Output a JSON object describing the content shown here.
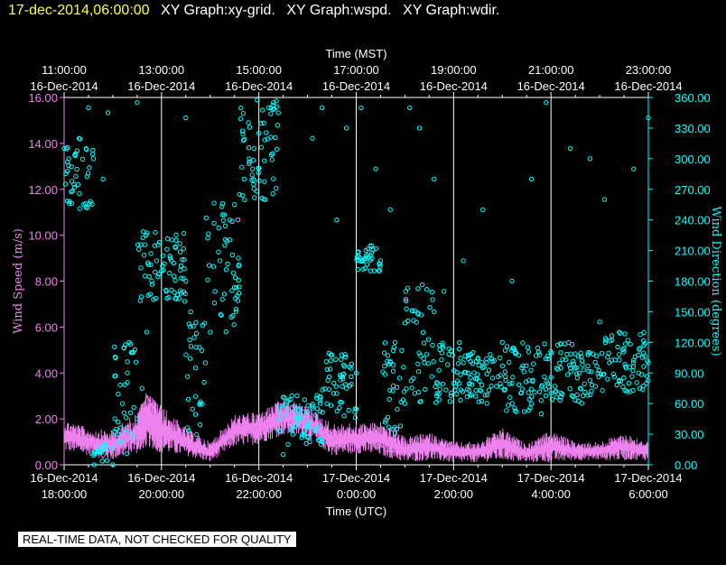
{
  "header": {
    "timestamp": "17-dec-2014,06:00:00",
    "graphs": [
      "XY Graph:xy-grid.",
      "XY Graph:wspd.",
      "XY Graph:wdir."
    ]
  },
  "notice": "REAL-TIME DATA, NOT CHECKED FOR QUALITY",
  "colors": {
    "background": "#000000",
    "grid": "#ffffff",
    "wind_speed": "#ee82ee",
    "wind_direction": "#00ffff",
    "timestamp_text": "#ffff33"
  },
  "chart_data": {
    "type": "scatter",
    "top_axis": {
      "title": "Time (MST)",
      "ticks": [
        {
          "t": 0,
          "time": "11:00:00",
          "date": "16-Dec-2014"
        },
        {
          "t": 2,
          "time": "13:00:00",
          "date": "16-Dec-2014"
        },
        {
          "t": 4,
          "time": "15:00:00",
          "date": "16-Dec-2014"
        },
        {
          "t": 6,
          "time": "17:00:00",
          "date": "16-Dec-2014"
        },
        {
          "t": 8,
          "time": "19:00:00",
          "date": "16-Dec-2014"
        },
        {
          "t": 10,
          "time": "21:00:00",
          "date": "16-Dec-2014"
        },
        {
          "t": 12,
          "time": "23:00:00",
          "date": "16-Dec-2014"
        }
      ]
    },
    "bottom_axis": {
      "title": "Time (UTC)",
      "ticks": [
        {
          "t": 0,
          "date": "16-Dec-2014",
          "time": "18:00:00"
        },
        {
          "t": 2,
          "date": "16-Dec-2014",
          "time": "20:00:00"
        },
        {
          "t": 4,
          "date": "16-Dec-2014",
          "time": "22:00:00"
        },
        {
          "t": 6,
          "date": "17-Dec-2014",
          "time": "0:00:00"
        },
        {
          "t": 8,
          "date": "17-Dec-2014",
          "time": "2:00:00"
        },
        {
          "t": 10,
          "date": "17-Dec-2014",
          "time": "4:00:00"
        },
        {
          "t": 12,
          "date": "17-Dec-2014",
          "time": "6:00:00"
        }
      ]
    },
    "xlim": [
      0,
      12
    ],
    "left_axis": {
      "title": "Wind Speed (m/s)",
      "ylim": [
        0,
        16
      ],
      "ticks": [
        "0.00",
        "2.00",
        "4.00",
        "6.00",
        "8.00",
        "10.00",
        "12.00",
        "14.00",
        "16.00"
      ]
    },
    "right_axis": {
      "title": "Wind Direction (degrees)",
      "ylim": [
        0,
        360
      ],
      "ticks": [
        "0.00",
        "30.00",
        "60.00",
        "90.00",
        "120.00",
        "150.00",
        "180.00",
        "210.00",
        "240.00",
        "270.00",
        "300.00",
        "330.00",
        "360.00"
      ]
    },
    "grid": true,
    "series": [
      {
        "key": "wspd",
        "axis": "left",
        "style": "line",
        "color": "#ee82ee",
        "points": [
          [
            0,
            1.5
          ],
          [
            0.5,
            1.0
          ],
          [
            0.8,
            0.3
          ],
          [
            1.2,
            1.4
          ],
          [
            1.5,
            1.6
          ],
          [
            1.7,
            3.0
          ],
          [
            2.0,
            1.8
          ],
          [
            2.3,
            1.0
          ],
          [
            2.6,
            0.7
          ],
          [
            3.0,
            0.4
          ],
          [
            3.3,
            1.0
          ],
          [
            3.6,
            1.8
          ],
          [
            4.0,
            1.7
          ],
          [
            4.3,
            2.1
          ],
          [
            4.7,
            2.6
          ],
          [
            5.0,
            2.3
          ],
          [
            5.3,
            1.2
          ],
          [
            5.6,
            0.9
          ],
          [
            6.0,
            1.0
          ],
          [
            6.3,
            1.5
          ],
          [
            6.6,
            0.6
          ],
          [
            7.0,
            0.5
          ],
          [
            7.4,
            1.0
          ],
          [
            7.8,
            0.4
          ],
          [
            8.2,
            0.6
          ],
          [
            8.6,
            0.5
          ],
          [
            9.0,
            1.0
          ],
          [
            9.4,
            0.3
          ],
          [
            9.8,
            1.1
          ],
          [
            10.2,
            0.6
          ],
          [
            10.6,
            0.5
          ],
          [
            11.0,
            0.5
          ],
          [
            11.4,
            1.0
          ],
          [
            11.8,
            0.5
          ],
          [
            12.0,
            0.5
          ]
        ],
        "range_points": [
          [
            0,
            0.6,
            2.0
          ],
          [
            0.5,
            0.4,
            1.6
          ],
          [
            1.0,
            0.2,
            1.5
          ],
          [
            1.5,
            0.5,
            2.3
          ],
          [
            1.7,
            0.8,
            3.2
          ],
          [
            2.0,
            0.5,
            2.6
          ],
          [
            2.5,
            0.4,
            1.6
          ],
          [
            3.0,
            0.1,
            1.0
          ],
          [
            3.5,
            0.8,
            2.2
          ],
          [
            4.0,
            0.9,
            2.3
          ],
          [
            4.5,
            1.3,
            2.9
          ],
          [
            5.0,
            1.2,
            2.6
          ],
          [
            5.5,
            0.4,
            1.8
          ],
          [
            6.0,
            0.5,
            1.8
          ],
          [
            6.5,
            0.4,
            1.9
          ],
          [
            7.0,
            0.1,
            1.2
          ],
          [
            7.5,
            0.2,
            1.4
          ],
          [
            8.0,
            0.1,
            1.0
          ],
          [
            8.5,
            0.1,
            1.0
          ],
          [
            9.0,
            0.2,
            1.6
          ],
          [
            9.5,
            0.1,
            0.9
          ],
          [
            10.0,
            0.1,
            1.5
          ],
          [
            10.5,
            0.2,
            1.0
          ],
          [
            11.0,
            0.2,
            1.0
          ],
          [
            11.5,
            0.2,
            1.4
          ],
          [
            12.0,
            0.2,
            1.0
          ]
        ]
      },
      {
        "key": "wdir",
        "axis": "right",
        "style": "circles",
        "color": "#00ffff",
        "points": [
          [
            0,
            310
          ],
          [
            0.2,
            275
          ],
          [
            0.4,
            255
          ],
          [
            0.6,
            300
          ],
          [
            0.8,
            280
          ],
          [
            1.0,
            0
          ],
          [
            1.1,
            30
          ],
          [
            1.2,
            60
          ],
          [
            1.3,
            90
          ],
          [
            1.4,
            110
          ],
          [
            1.5,
            45
          ],
          [
            1.6,
            75
          ],
          [
            1.7,
            130
          ],
          [
            1.8,
            180
          ],
          [
            1.9,
            200
          ],
          [
            2.0,
            190
          ],
          [
            2.1,
            170
          ],
          [
            2.2,
            200
          ],
          [
            2.3,
            220
          ],
          [
            2.4,
            195
          ],
          [
            2.5,
            180
          ],
          [
            2.6,
            150
          ],
          [
            2.7,
            95
          ],
          [
            2.8,
            60
          ],
          [
            2.9,
            100
          ],
          [
            3.0,
            130
          ],
          [
            3.1,
            170
          ],
          [
            3.2,
            200
          ],
          [
            3.3,
            215
          ],
          [
            3.4,
            240
          ],
          [
            3.5,
            255
          ],
          [
            3.6,
            265
          ],
          [
            3.7,
            280
          ],
          [
            3.8,
            295
          ],
          [
            3.9,
            310
          ],
          [
            4.0,
            325
          ],
          [
            4.1,
            335
          ],
          [
            4.2,
            350
          ],
          [
            4.3,
            355
          ],
          [
            4.4,
            345
          ],
          [
            4.5,
            10
          ],
          [
            4.6,
            20
          ],
          [
            4.7,
            30
          ],
          [
            4.8,
            40
          ],
          [
            4.9,
            48
          ],
          [
            5.0,
            52
          ],
          [
            5.2,
            55
          ],
          [
            5.4,
            60
          ],
          [
            5.6,
            70
          ],
          [
            5.8,
            75
          ],
          [
            6.0,
            90
          ],
          [
            6.2,
            210
          ],
          [
            6.3,
            205
          ],
          [
            6.5,
            200
          ],
          [
            6.8,
            120
          ],
          [
            7.0,
            60
          ],
          [
            7.2,
            70
          ],
          [
            7.4,
            100
          ],
          [
            7.6,
            150
          ],
          [
            7.8,
            170
          ],
          [
            8.0,
            80
          ],
          [
            8.2,
            100
          ],
          [
            8.4,
            110
          ],
          [
            8.6,
            95
          ],
          [
            8.8,
            85
          ],
          [
            9.0,
            120
          ],
          [
            9.2,
            80
          ],
          [
            9.4,
            95
          ],
          [
            9.6,
            60
          ],
          [
            9.8,
            50
          ],
          [
            10.0,
            70
          ],
          [
            10.2,
            110
          ],
          [
            10.4,
            95
          ],
          [
            10.6,
            75
          ],
          [
            10.8,
            110
          ],
          [
            11.0,
            140
          ],
          [
            11.2,
            100
          ],
          [
            11.4,
            130
          ],
          [
            11.6,
            80
          ],
          [
            11.8,
            90
          ],
          [
            12.0,
            100
          ]
        ],
        "bands": [
          [
            0.0,
            0.6,
            250,
            320
          ],
          [
            0.6,
            0.9,
            0,
            20
          ],
          [
            1.0,
            1.5,
            10,
            120
          ],
          [
            1.5,
            2.5,
            160,
            230
          ],
          [
            2.5,
            2.9,
            20,
            140
          ],
          [
            2.9,
            3.6,
            130,
            260
          ],
          [
            3.6,
            4.4,
            250,
            360
          ],
          [
            4.4,
            5.3,
            20,
            70
          ],
          [
            5.3,
            6.0,
            45,
            110
          ],
          [
            6.0,
            6.5,
            190,
            215
          ],
          [
            6.5,
            7.0,
            30,
            120
          ],
          [
            7.0,
            7.6,
            60,
            180
          ],
          [
            7.6,
            8.2,
            60,
            120
          ],
          [
            8.2,
            9.0,
            60,
            110
          ],
          [
            9.0,
            9.8,
            50,
            120
          ],
          [
            9.8,
            10.5,
            60,
            120
          ],
          [
            10.5,
            11.0,
            60,
            110
          ],
          [
            11.0,
            12.0,
            70,
            130
          ]
        ],
        "scatter_extras": [
          [
            0.5,
            350
          ],
          [
            0.9,
            345
          ],
          [
            1.5,
            355
          ],
          [
            2.5,
            340
          ],
          [
            3.8,
            300
          ],
          [
            5.1,
            320
          ],
          [
            5.3,
            350
          ],
          [
            5.6,
            240
          ],
          [
            5.8,
            330
          ],
          [
            6.1,
            350
          ],
          [
            6.4,
            290
          ],
          [
            6.7,
            250
          ],
          [
            7.1,
            350
          ],
          [
            7.3,
            330
          ],
          [
            7.6,
            280
          ],
          [
            8.2,
            200
          ],
          [
            8.6,
            250
          ],
          [
            9.2,
            180
          ],
          [
            9.6,
            280
          ],
          [
            9.9,
            355
          ],
          [
            10.4,
            310
          ],
          [
            10.8,
            300
          ],
          [
            11.1,
            260
          ],
          [
            11.7,
            290
          ],
          [
            12.0,
            340
          ]
        ]
      }
    ]
  }
}
